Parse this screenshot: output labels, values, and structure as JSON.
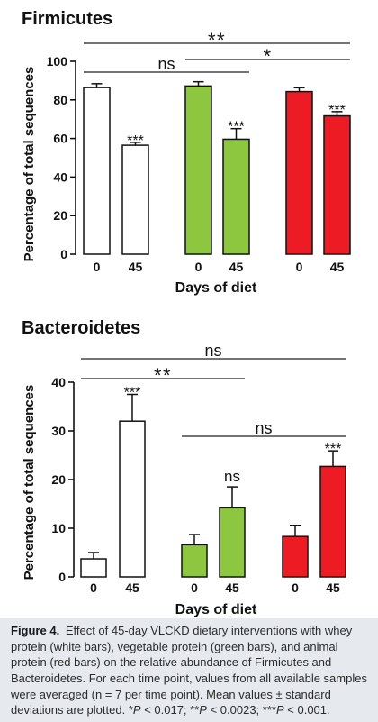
{
  "chart_data": [
    {
      "type": "bar",
      "title": "Firmicutes",
      "xlabel": "Days of diet",
      "ylabel": "Percentage of total sequences",
      "ylim": [
        0,
        100
      ],
      "yticks": [
        0,
        20,
        40,
        60,
        80,
        100
      ],
      "grid": false,
      "bars": [
        {
          "x": "0",
          "value": 86.4,
          "error": 2.0,
          "color": "#ffffff"
        },
        {
          "x": "45",
          "value": 56.5,
          "error": 1.5,
          "color": "#ffffff",
          "annotation": "***"
        },
        {
          "x": "0",
          "value": 87.2,
          "error": 2.2,
          "color": "#8dc63f"
        },
        {
          "x": "45",
          "value": 59.6,
          "error": 5.5,
          "color": "#8dc63f",
          "annotation": "***"
        },
        {
          "x": "0",
          "value": 84.3,
          "error": 2.0,
          "color": "#ed1c24"
        },
        {
          "x": "45",
          "value": 71.7,
          "error": 2.2,
          "color": "#ed1c24",
          "annotation": "***"
        }
      ],
      "brackets": [
        {
          "label": "**",
          "from": 0,
          "to": 5
        },
        {
          "label": "*",
          "from": 2,
          "to": 5
        },
        {
          "label": "ns",
          "from": 0,
          "to": 3
        }
      ]
    },
    {
      "type": "bar",
      "title": "Bacteroidetes",
      "xlabel": "Days of diet",
      "ylabel": "Percentage of total sequences",
      "ylim": [
        0,
        40
      ],
      "yticks": [
        0,
        10,
        20,
        30,
        40
      ],
      "grid": false,
      "bars": [
        {
          "x": "0",
          "value": 3.7,
          "error": 1.3,
          "color": "#ffffff"
        },
        {
          "x": "45",
          "value": 32.0,
          "error": 5.5,
          "color": "#ffffff",
          "annotation": "***"
        },
        {
          "x": "0",
          "value": 6.6,
          "error": 2.1,
          "color": "#8dc63f"
        },
        {
          "x": "45",
          "value": 14.2,
          "error": 4.3,
          "color": "#8dc63f",
          "annotation": "ns"
        },
        {
          "x": "0",
          "value": 8.3,
          "error": 2.3,
          "color": "#ed1c24"
        },
        {
          "x": "45",
          "value": 22.7,
          "error": 3.2,
          "color": "#ed1c24",
          "annotation": "***"
        }
      ],
      "brackets": [
        {
          "label": "ns",
          "from": 0,
          "to": 5
        },
        {
          "label": "**",
          "from": 0,
          "to": 3
        },
        {
          "label": "ns",
          "from": 2,
          "to": 5
        }
      ]
    }
  ],
  "caption": {
    "label": "Figure 4.",
    "lines": [
      "Effect of 45-day VLCKD dietary interventions with whey",
      "protein (white bars), vegetable protein (green bars), and animal",
      "protein (red bars) on the relative abundance of Firmicutes and",
      "Bacteroidetes. For each time point, values from all available samples",
      "were averaged (n = 7 per time point). Mean values ± standard",
      "deviations are plotted."
    ],
    "significance": [
      {
        "stars": "*",
        "p": "P",
        "threshold": "< 0.017;"
      },
      {
        "stars": "**",
        "p": "P",
        "threshold": "< 0.0023;"
      },
      {
        "stars": "***",
        "p": "P",
        "threshold": "< 0.001."
      }
    ]
  }
}
